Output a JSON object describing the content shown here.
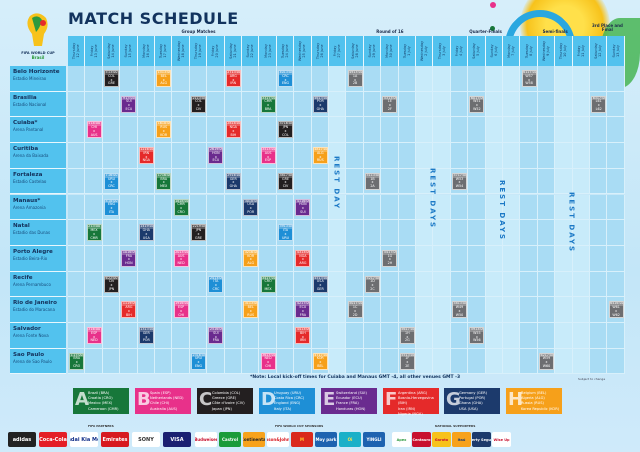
{
  "header": {
    "title": "MATCH SCHEDULE",
    "logo_text": "FIFA WORLD CUP Brasil"
  },
  "stages": [
    {
      "label": "Group Matches",
      "from": 0,
      "to": 14
    },
    {
      "label": "Round of 16",
      "from": 15,
      "to": 21
    },
    {
      "label": "Quarter-Finals",
      "from": 22,
      "to": 25
    },
    {
      "label": "Semi-finals",
      "from": 26,
      "to": 29
    },
    {
      "label": "3rd Place and Final",
      "from": 30,
      "to": 31
    }
  ],
  "days": [
    {
      "weekday": "Thursday",
      "date": "12 June"
    },
    {
      "weekday": "Friday",
      "date": "13 June"
    },
    {
      "weekday": "Saturday",
      "date": "14 June"
    },
    {
      "weekday": "Sunday",
      "date": "15 June"
    },
    {
      "weekday": "Monday",
      "date": "16 June"
    },
    {
      "weekday": "Tuesday",
      "date": "17 June"
    },
    {
      "weekday": "Wednesday",
      "date": "18 June"
    },
    {
      "weekday": "Thursday",
      "date": "19 June"
    },
    {
      "weekday": "Friday",
      "date": "20 June"
    },
    {
      "weekday": "Saturday",
      "date": "21 June"
    },
    {
      "weekday": "Sunday",
      "date": "22 June"
    },
    {
      "weekday": "Monday",
      "date": "23 June"
    },
    {
      "weekday": "Tuesday",
      "date": "24 June"
    },
    {
      "weekday": "Wednesday",
      "date": "25 June"
    },
    {
      "weekday": "Thursday",
      "date": "26 June"
    },
    {
      "weekday": "Friday",
      "date": "27 June"
    },
    {
      "weekday": "Saturday",
      "date": "28 June"
    },
    {
      "weekday": "Sunday",
      "date": "29 June"
    },
    {
      "weekday": "Monday",
      "date": "30 June"
    },
    {
      "weekday": "Tuesday",
      "date": "1 July"
    },
    {
      "weekday": "Wednesday",
      "date": "2 July"
    },
    {
      "weekday": "Thursday",
      "date": "3 July"
    },
    {
      "weekday": "Friday",
      "date": "4 July"
    },
    {
      "weekday": "Saturday",
      "date": "5 July"
    },
    {
      "weekday": "Sunday",
      "date": "6 July"
    },
    {
      "weekday": "Monday",
      "date": "7 July"
    },
    {
      "weekday": "Tuesday",
      "date": "8 July"
    },
    {
      "weekday": "Wednesday",
      "date": "9 July"
    },
    {
      "weekday": "Thursday",
      "date": "10 July"
    },
    {
      "weekday": "Friday",
      "date": "11 July"
    },
    {
      "weekday": "Saturday",
      "date": "12 July"
    },
    {
      "weekday": "Sunday",
      "date": "13 July"
    }
  ],
  "rest_periods": [
    {
      "label": "REST DAY",
      "dates": [
        "27 June"
      ]
    },
    {
      "label": "REST DAYS",
      "dates": [
        "2 July",
        "3 July"
      ]
    },
    {
      "label": "REST DAYS",
      "dates": [
        "6 July",
        "7 July"
      ]
    },
    {
      "label": "REST DAYS",
      "dates": [
        "10 July",
        "11 July"
      ]
    }
  ],
  "cities": [
    {
      "name": "Belo Horizonte",
      "stadium": "Estadio Mineirao"
    },
    {
      "name": "Brasilia",
      "stadium": "Estadio Nacional"
    },
    {
      "name": "Cuiaba*",
      "stadium": "Arena Pantanal"
    },
    {
      "name": "Curitiba",
      "stadium": "Arena da Baixada"
    },
    {
      "name": "Fortaleza",
      "stadium": "Estadio Castelao"
    },
    {
      "name": "Manaus*",
      "stadium": "Arena Amazonia"
    },
    {
      "name": "Natal",
      "stadium": "Estadio das Dunas"
    },
    {
      "name": "Porto Alegre",
      "stadium": "Estadio Beira-Rio"
    },
    {
      "name": "Recife",
      "stadium": "Arena Pernambuco"
    },
    {
      "name": "Rio de Janeiro",
      "stadium": "Estadio do Maracana"
    },
    {
      "name": "Salvador",
      "stadium": "Arena Fonte Nova"
    },
    {
      "name": "Sao Paulo",
      "stadium": "Arena de Sao Paulo"
    }
  ],
  "groups": {
    "A": {
      "color": "#17773a",
      "teams": [
        "Brazil (BRA)",
        "Croatia (CRO)",
        "Mexico (MEX)",
        "Cameroon (CMR)"
      ]
    },
    "B": {
      "color": "#e8318a",
      "teams": [
        "Spain (ESP)",
        "Netherlands (NED)",
        "Chile (CHI)",
        "Australia (AUS)"
      ]
    },
    "C": {
      "color": "#231f20",
      "teams": [
        "Colombia (COL)",
        "Greece (GRE)",
        "Côte d'Ivoire (CIV)",
        "Japan (JPN)"
      ]
    },
    "D": {
      "color": "#1e8fd6",
      "teams": [
        "Uruguay (URU)",
        "Costa Rica (CRC)",
        "England (ENG)",
        "Italy (ITA)"
      ]
    },
    "E": {
      "color": "#6a2b8f",
      "teams": [
        "Switzerland (SUI)",
        "Ecuador (ECU)",
        "France (FRA)",
        "Honduras (HON)"
      ]
    },
    "F": {
      "color": "#e52a2a",
      "teams": [
        "Argentina (ARG)",
        "Bosnia-Herzegovina (BIH)",
        "Iran (IRN)",
        "Nigeria (NGA)"
      ]
    },
    "G": {
      "color": "#1c3a6c",
      "teams": [
        "Germany (GER)",
        "Portugal (POR)",
        "Ghana (GHA)",
        "USA (USA)"
      ]
    },
    "H": {
      "color": "#f6a01a",
      "teams": [
        "Belgium (BEL)",
        "Algeria (ALG)",
        "Russia (RUS)",
        "Korea Republic (KOR)"
      ]
    },
    "KO": {
      "color": "#6d6e71"
    }
  },
  "matches": [
    {
      "no": "1",
      "time": "17:00",
      "date": "12 June",
      "city": "Sao Paulo",
      "home": "BRA",
      "away": "CRO",
      "group": "A"
    },
    {
      "no": "2",
      "time": "13:00",
      "date": "13 June",
      "city": "Natal",
      "home": "MEX",
      "away": "CMR",
      "group": "A"
    },
    {
      "no": "3",
      "time": "16:00",
      "date": "13 June",
      "city": "Salvador",
      "home": "ESP",
      "away": "NED",
      "group": "B"
    },
    {
      "no": "4",
      "time": "18:00",
      "date": "13 June",
      "city": "Cuiaba*",
      "home": "CHI",
      "away": "AUS",
      "group": "B"
    },
    {
      "no": "5",
      "time": "13:00",
      "date": "14 June",
      "city": "Belo Horizonte",
      "home": "COL",
      "away": "GRE",
      "group": "C"
    },
    {
      "no": "6",
      "time": "22:00",
      "date": "14 June",
      "city": "Recife",
      "home": "CIV",
      "away": "JPN",
      "group": "C"
    },
    {
      "no": "7",
      "time": "16:00",
      "date": "14 June",
      "city": "Fortaleza",
      "home": "URU",
      "away": "CRC",
      "group": "D"
    },
    {
      "no": "8",
      "time": "18:00",
      "date": "14 June",
      "city": "Manaus*",
      "home": "ENG",
      "away": "ITA",
      "group": "D"
    },
    {
      "no": "9",
      "time": "13:00",
      "date": "15 June",
      "city": "Brasilia",
      "home": "SUI",
      "away": "ECU",
      "group": "E"
    },
    {
      "no": "10",
      "time": "16:00",
      "date": "15 June",
      "city": "Porto Alegre",
      "home": "FRA",
      "away": "HON",
      "group": "E"
    },
    {
      "no": "11",
      "time": "19:00",
      "date": "15 June",
      "city": "Rio de Janeiro",
      "home": "ARG",
      "away": "BIH",
      "group": "F"
    },
    {
      "no": "12",
      "time": "16:00",
      "date": "16 June",
      "city": "Curitiba",
      "home": "IRN",
      "away": "NGA",
      "group": "F"
    },
    {
      "no": "13",
      "time": "13:00",
      "date": "16 June",
      "city": "Salvador",
      "home": "GER",
      "away": "POR",
      "group": "G"
    },
    {
      "no": "14",
      "time": "19:00",
      "date": "16 June",
      "city": "Natal",
      "home": "GHA",
      "away": "USA",
      "group": "G"
    },
    {
      "no": "15",
      "time": "13:00",
      "date": "17 June",
      "city": "Belo Horizonte",
      "home": "BEL",
      "away": "ALG",
      "group": "H"
    },
    {
      "no": "16",
      "time": "18:00",
      "date": "17 June",
      "city": "Cuiaba*",
      "home": "RUS",
      "away": "KOR",
      "group": "H"
    },
    {
      "no": "17",
      "time": "16:00",
      "date": "17 June",
      "city": "Fortaleza",
      "home": "BRA",
      "away": "MEX",
      "group": "A"
    },
    {
      "no": "18",
      "time": "18:00",
      "date": "18 June",
      "city": "Manaus*",
      "home": "CMR",
      "away": "CRO",
      "group": "A"
    },
    {
      "no": "19",
      "time": "16:00",
      "date": "18 June",
      "city": "Rio de Janeiro",
      "home": "ESP",
      "away": "CHI",
      "group": "B"
    },
    {
      "no": "20",
      "time": "13:00",
      "date": "18 June",
      "city": "Porto Alegre",
      "home": "AUS",
      "away": "NED",
      "group": "B"
    },
    {
      "no": "21",
      "time": "13:00",
      "date": "19 June",
      "city": "Brasilia",
      "home": "COL",
      "away": "CIV",
      "group": "C"
    },
    {
      "no": "22",
      "time": "19:00",
      "date": "19 June",
      "city": "Natal",
      "home": "JPN",
      "away": "GRE",
      "group": "C"
    },
    {
      "no": "23",
      "time": "16:00",
      "date": "19 June",
      "city": "Sao Paulo",
      "home": "URU",
      "away": "ENG",
      "group": "D"
    },
    {
      "no": "24",
      "time": "13:00",
      "date": "20 June",
      "city": "Recife",
      "home": "ITA",
      "away": "CRC",
      "group": "D"
    },
    {
      "no": "25",
      "time": "16:00",
      "date": "20 June",
      "city": "Salvador",
      "home": "SUI",
      "away": "FRA",
      "group": "E"
    },
    {
      "no": "26",
      "time": "19:00",
      "date": "20 June",
      "city": "Curitiba",
      "home": "HON",
      "away": "ECU",
      "group": "E"
    },
    {
      "no": "27",
      "time": "13:00",
      "date": "21 June",
      "city": "Belo Horizonte",
      "home": "ARG",
      "away": "IRN",
      "group": "F"
    },
    {
      "no": "28",
      "time": "18:00",
      "date": "21 June",
      "city": "Cuiaba*",
      "home": "NGA",
      "away": "BIH",
      "group": "F"
    },
    {
      "no": "29",
      "time": "16:00",
      "date": "21 June",
      "city": "Fortaleza",
      "home": "GER",
      "away": "GHA",
      "group": "G"
    },
    {
      "no": "30",
      "time": "18:00",
      "date": "22 June",
      "city": "Manaus*",
      "home": "USA",
      "away": "POR",
      "group": "G"
    },
    {
      "no": "31",
      "time": "13:00",
      "date": "22 June",
      "city": "Rio de Janeiro",
      "home": "BEL",
      "away": "RUS",
      "group": "H"
    },
    {
      "no": "32",
      "time": "16:00",
      "date": "22 June",
      "city": "Porto Alegre",
      "home": "KOR",
      "away": "ALG",
      "group": "H"
    },
    {
      "no": "33",
      "time": "17:00",
      "date": "23 June",
      "city": "Brasilia",
      "home": "CMR",
      "away": "BRA",
      "group": "A"
    },
    {
      "no": "34",
      "time": "17:00",
      "date": "23 June",
      "city": "Recife",
      "home": "CRO",
      "away": "MEX",
      "group": "A"
    },
    {
      "no": "35",
      "time": "13:00",
      "date": "23 June",
      "city": "Curitiba",
      "home": "AUS",
      "away": "ESP",
      "group": "B"
    },
    {
      "no": "36",
      "time": "13:00",
      "date": "23 June",
      "city": "Sao Paulo",
      "home": "NED",
      "away": "CHI",
      "group": "B"
    },
    {
      "no": "37",
      "time": "16:00",
      "date": "24 June",
      "city": "Cuiaba*",
      "home": "JPN",
      "away": "COL",
      "group": "C"
    },
    {
      "no": "38",
      "time": "17:00",
      "date": "24 June",
      "city": "Fortaleza",
      "home": "GRE",
      "away": "CIV",
      "group": "C"
    },
    {
      "no": "39",
      "time": "13:00",
      "date": "24 June",
      "city": "Natal",
      "home": "ITA",
      "away": "URU",
      "group": "D"
    },
    {
      "no": "40",
      "time": "13:00",
      "date": "24 June",
      "city": "Belo Horizonte",
      "home": "CRC",
      "away": "ENG",
      "group": "D"
    },
    {
      "no": "41",
      "time": "16:00",
      "date": "25 June",
      "city": "Manaus*",
      "home": "HON",
      "away": "SUI",
      "group": "E"
    },
    {
      "no": "42",
      "time": "17:00",
      "date": "25 June",
      "city": "Rio de Janeiro",
      "home": "ECU",
      "away": "FRA",
      "group": "E"
    },
    {
      "no": "43",
      "time": "13:00",
      "date": "25 June",
      "city": "Porto Alegre",
      "home": "NGA",
      "away": "ARG",
      "group": "F"
    },
    {
      "no": "44",
      "time": "13:00",
      "date": "25 June",
      "city": "Salvador",
      "home": "BIH",
      "away": "IRN",
      "group": "F"
    },
    {
      "no": "45",
      "time": "13:00",
      "date": "26 June",
      "city": "Recife",
      "home": "USA",
      "away": "GER",
      "group": "G"
    },
    {
      "no": "46",
      "time": "13:00",
      "date": "26 June",
      "city": "Brasilia",
      "home": "POR",
      "away": "GHA",
      "group": "G"
    },
    {
      "no": "47",
      "time": "17:00",
      "date": "26 June",
      "city": "Sao Paulo",
      "home": "KOR",
      "away": "BEL",
      "group": "H"
    },
    {
      "no": "48",
      "time": "17:00",
      "date": "26 June",
      "city": "Curitiba",
      "home": "ALG",
      "away": "RUS",
      "group": "H"
    },
    {
      "no": "49",
      "time": "13:00",
      "date": "28 June",
      "city": "Belo Horizonte",
      "home": "1A",
      "away": "2B",
      "group": "KO"
    },
    {
      "no": "50",
      "time": "17:00",
      "date": "28 June",
      "city": "Rio de Janeiro",
      "home": "1C",
      "away": "2D",
      "group": "KO"
    },
    {
      "no": "51",
      "time": "13:00",
      "date": "29 June",
      "city": "Fortaleza",
      "home": "1B",
      "away": "2A",
      "group": "KO"
    },
    {
      "no": "52",
      "time": "17:00",
      "date": "29 June",
      "city": "Recife",
      "home": "1D",
      "away": "2C",
      "group": "KO"
    },
    {
      "no": "53",
      "time": "13:00",
      "date": "30 June",
      "city": "Brasilia",
      "home": "1E",
      "away": "2F",
      "group": "KO"
    },
    {
      "no": "54",
      "time": "17:00",
      "date": "30 June",
      "city": "Porto Alegre",
      "home": "1G",
      "away": "2H",
      "group": "KO"
    },
    {
      "no": "55",
      "time": "13:00",
      "date": "1 July",
      "city": "Sao Paulo",
      "home": "1F",
      "away": "2E",
      "group": "KO"
    },
    {
      "no": "56",
      "time": "17:00",
      "date": "1 July",
      "city": "Salvador",
      "home": "1H",
      "away": "2G",
      "group": "KO"
    },
    {
      "no": "57",
      "time": "17:00",
      "date": "4 July",
      "city": "Fortaleza",
      "home": "W53",
      "away": "W54",
      "group": "KO"
    },
    {
      "no": "58",
      "time": "13:00",
      "date": "4 July",
      "city": "Rio de Janeiro",
      "home": "W49",
      "away": "W50",
      "group": "KO"
    },
    {
      "no": "59",
      "time": "13:00",
      "date": "5 July",
      "city": "Salvador",
      "home": "W55",
      "away": "W56",
      "group": "KO"
    },
    {
      "no": "60",
      "time": "17:00",
      "date": "5 July",
      "city": "Brasilia",
      "home": "W51",
      "away": "W52",
      "group": "KO"
    },
    {
      "no": "61",
      "time": "17:00",
      "date": "8 July",
      "city": "Belo Horizonte",
      "home": "W57",
      "away": "W58",
      "group": "KO"
    },
    {
      "no": "62",
      "time": "17:00",
      "date": "9 July",
      "city": "Sao Paulo",
      "home": "W59",
      "away": "W60",
      "group": "KO"
    },
    {
      "no": "63",
      "time": "17:00",
      "date": "12 July",
      "city": "Brasilia",
      "home": "L61",
      "away": "L62",
      "group": "KO"
    },
    {
      "no": "64",
      "time": "16:00",
      "date": "13 July",
      "city": "Rio de Janeiro",
      "home": "W61",
      "away": "W62",
      "group": "KO"
    }
  ],
  "note": "*Note: Local kick-off times for Cuiaba and Manaus GMT -4, all other venues GMT -3",
  "subject_to_change": "Subject to change",
  "sponsors": {
    "partners_label": "FIFA PARTNERS",
    "partners": [
      "adidas",
      "Coca-Cola",
      "Hyundai Kia Motors",
      "Emirates",
      "SONY",
      "VISA"
    ],
    "sponsors_label": "FIFA WORLD CUP SPONSORS",
    "sponsors": [
      "Budweiser",
      "Castrol",
      "Continental",
      "Johnson&Johnson",
      "M",
      "Moy park",
      "Oi",
      "YINGLI"
    ],
    "national_label": "NATIONAL SUPPORTERS",
    "national": [
      "Apex",
      "Centauro",
      "Garoto",
      "Itaú",
      "Liberty Seguros",
      "Wise Up"
    ]
  }
}
